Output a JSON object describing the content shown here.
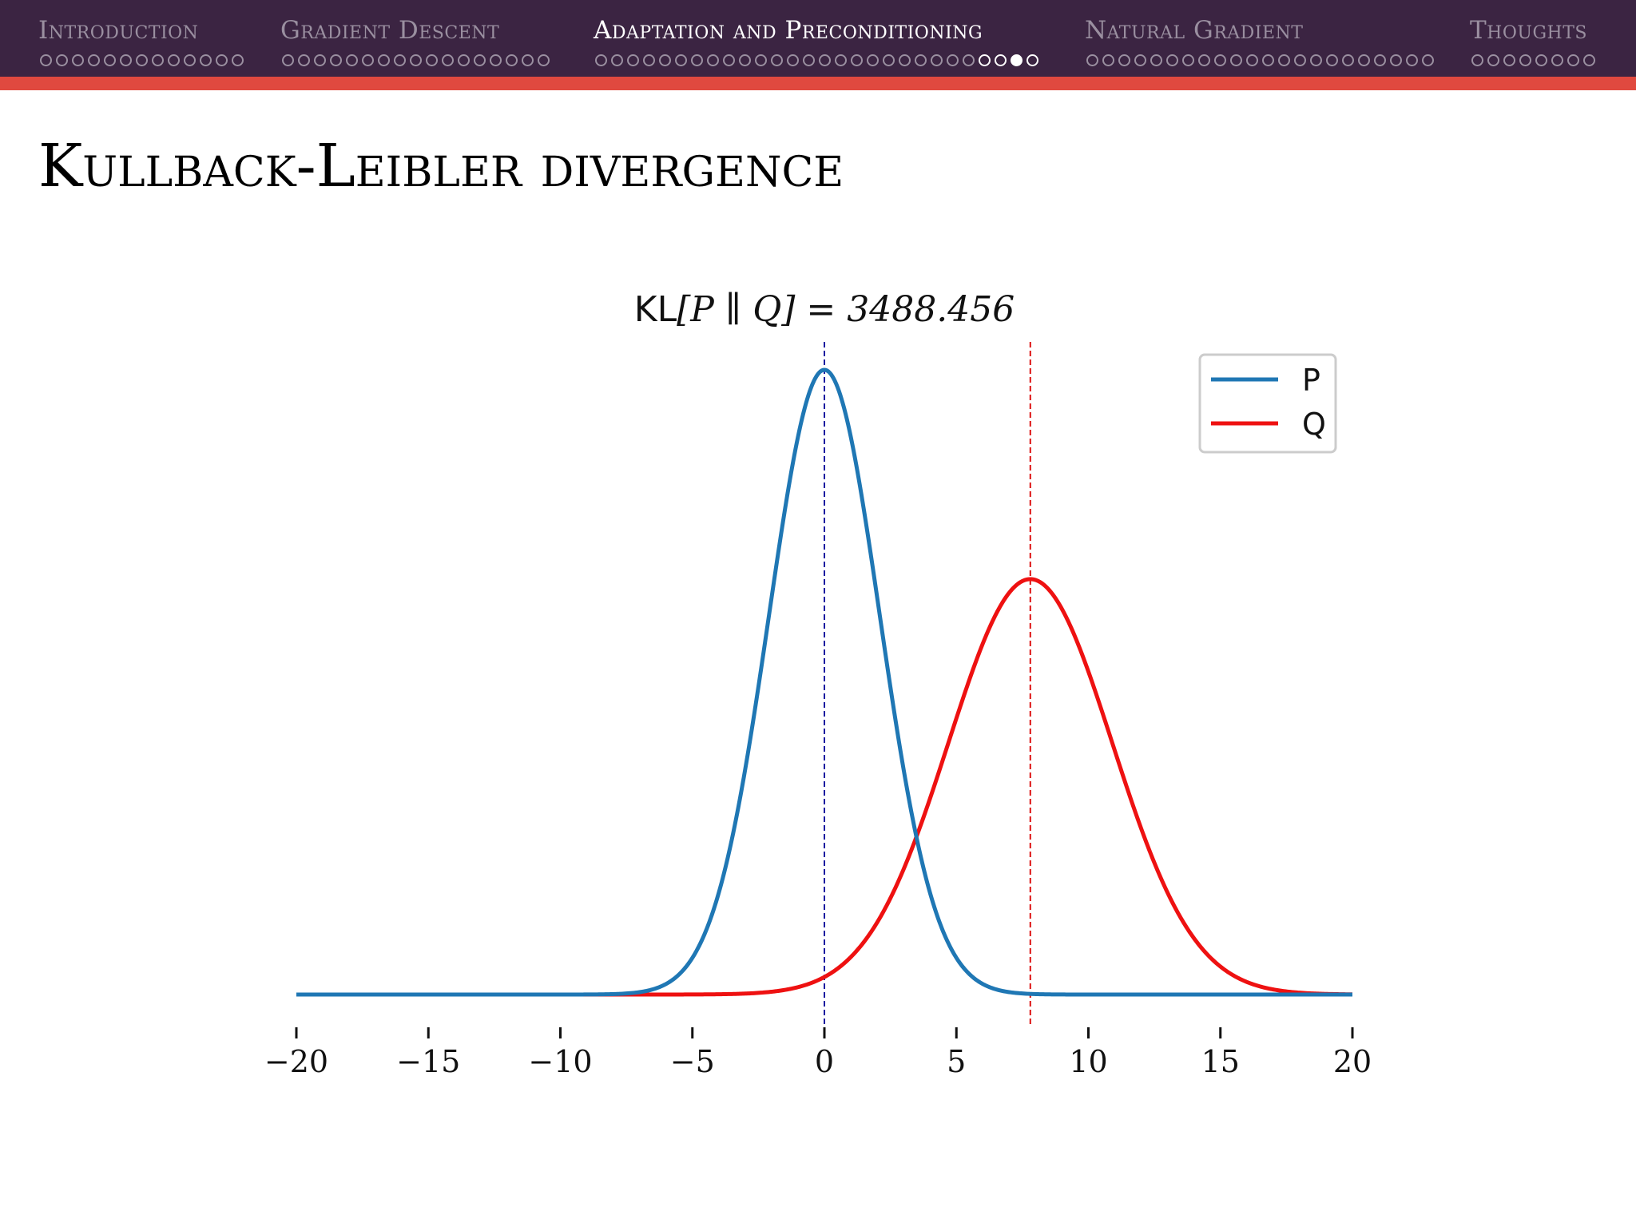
{
  "nav": {
    "sections": [
      {
        "label": "Introduction",
        "dots": 13,
        "active": false,
        "lit": [],
        "current": -1
      },
      {
        "label": "Gradient Descent",
        "dots": 17,
        "active": false,
        "lit": [],
        "current": -1
      },
      {
        "label": "Adaptation and Preconditioning",
        "dots": 28,
        "active": true,
        "lit": [
          24,
          25,
          27
        ],
        "current": 26
      },
      {
        "label": "Natural Gradient",
        "dots": 22,
        "active": false,
        "lit": [],
        "current": -1
      },
      {
        "label": "Thoughts",
        "dots": 8,
        "active": false,
        "lit": [],
        "current": -1
      }
    ]
  },
  "slide": {
    "title": "Kullback-Leibler divergence"
  },
  "chart_data": {
    "type": "line",
    "title_prefix": "KL",
    "title_expr": "[P ∥ Q] = 3488.456",
    "xlim": [
      -20,
      20
    ],
    "xticks": [
      -20,
      -15,
      -10,
      -5,
      0,
      5,
      10,
      15,
      20
    ],
    "xtick_labels": [
      "−20",
      "−15",
      "−10",
      "−5",
      "0",
      "5",
      "10",
      "15",
      "20"
    ],
    "grid": false,
    "legend_position": "top-right",
    "series": [
      {
        "name": "P",
        "distribution": "normal",
        "mean": 0.0,
        "std": 2.1,
        "peak": 1.0,
        "color": "#1f77b4",
        "mean_line_color": "#1a1aa0"
      },
      {
        "name": "Q",
        "distribution": "normal",
        "mean": 7.8,
        "std": 3.1,
        "peak": 0.665,
        "color": "#ee1111",
        "mean_line_color": "#dd1111"
      }
    ]
  }
}
